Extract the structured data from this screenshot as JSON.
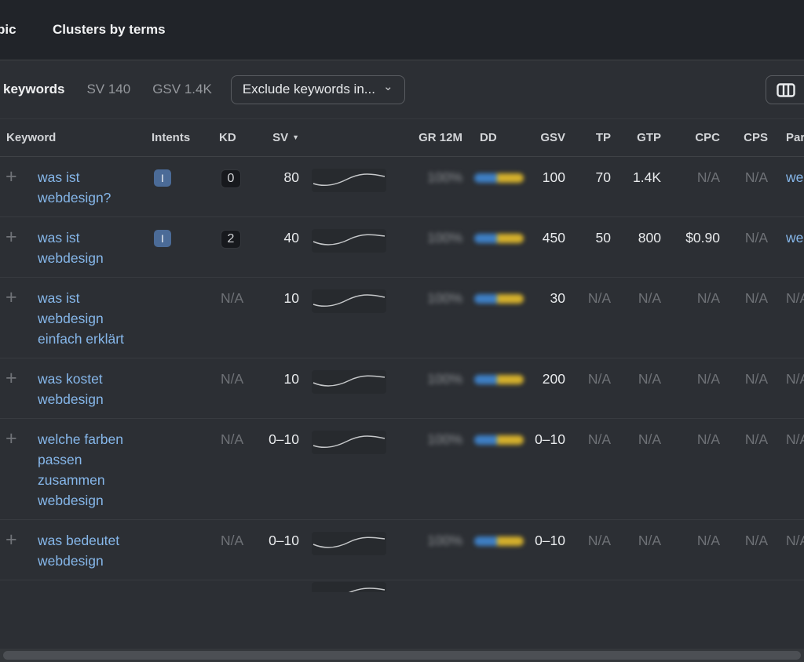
{
  "colors": {
    "accent_link": "#86b7ea",
    "intent_badge": "#4b6b97",
    "dd_blue": "#3e7fc4",
    "dd_yellow": "#d4b02c"
  },
  "icons": {
    "add": "+",
    "chevron_down": "⌄",
    "sort_desc": "▼"
  },
  "tabs": {
    "clipped_tab_fragment": "pic",
    "terms_tab": "Clusters by terms"
  },
  "toolbar": {
    "keywords_label": "keywords",
    "sv_stat": "SV 140",
    "gsv_stat": "GSV 1.4K",
    "exclude_dropdown_label": "Exclude keywords in..."
  },
  "table": {
    "headers": {
      "keyword": "Keyword",
      "intents": "Intents",
      "kd": "KD",
      "sv": "SV",
      "gr12m": "GR 12M",
      "dd": "DD",
      "gsv": "GSV",
      "tp": "TP",
      "gtp": "GTP",
      "cpc": "CPC",
      "cps": "CPS",
      "parent_fragment": "Par"
    },
    "rows": [
      {
        "keyword": "was ist webdesign?",
        "intent": "I",
        "kd": "0",
        "kd_badge": true,
        "sv": "80",
        "gr": "100%",
        "gsv": "100",
        "tp": "70",
        "gtp": "1.4K",
        "cpc": "N/A",
        "cps": "N/A",
        "parent": "we",
        "parent_is_link": true
      },
      {
        "keyword": "was ist webdesign",
        "intent": "I",
        "kd": "2",
        "kd_badge": true,
        "sv": "40",
        "gr": "100%",
        "gsv": "450",
        "tp": "50",
        "gtp": "800",
        "cpc": "$0.90",
        "cps": "N/A",
        "parent": "we",
        "parent_is_link": true
      },
      {
        "keyword": "was ist webdesign einfach erklärt",
        "intent": "",
        "kd": "N/A",
        "kd_badge": false,
        "sv": "10",
        "gr": "100%",
        "gsv": "30",
        "tp": "N/A",
        "gtp": "N/A",
        "cpc": "N/A",
        "cps": "N/A",
        "parent": "N/A",
        "parent_is_link": false
      },
      {
        "keyword": "was kostet webdesign",
        "intent": "",
        "kd": "N/A",
        "kd_badge": false,
        "sv": "10",
        "gr": "100%",
        "gsv": "200",
        "tp": "N/A",
        "gtp": "N/A",
        "cpc": "N/A",
        "cps": "N/A",
        "parent": "N/A",
        "parent_is_link": false
      },
      {
        "keyword": "welche farben passen zusammen webdesign",
        "intent": "",
        "kd": "N/A",
        "kd_badge": false,
        "sv": "0–10",
        "gr": "100%",
        "gsv": "0–10",
        "tp": "N/A",
        "gtp": "N/A",
        "cpc": "N/A",
        "cps": "N/A",
        "parent": "N/A",
        "parent_is_link": false
      },
      {
        "keyword": "was bedeutet webdesign",
        "intent": "",
        "kd": "N/A",
        "kd_badge": false,
        "sv": "0–10",
        "gr": "100%",
        "gsv": "0–10",
        "tp": "N/A",
        "gtp": "N/A",
        "cpc": "N/A",
        "cps": "N/A",
        "parent": "N/A",
        "parent_is_link": false
      }
    ]
  }
}
